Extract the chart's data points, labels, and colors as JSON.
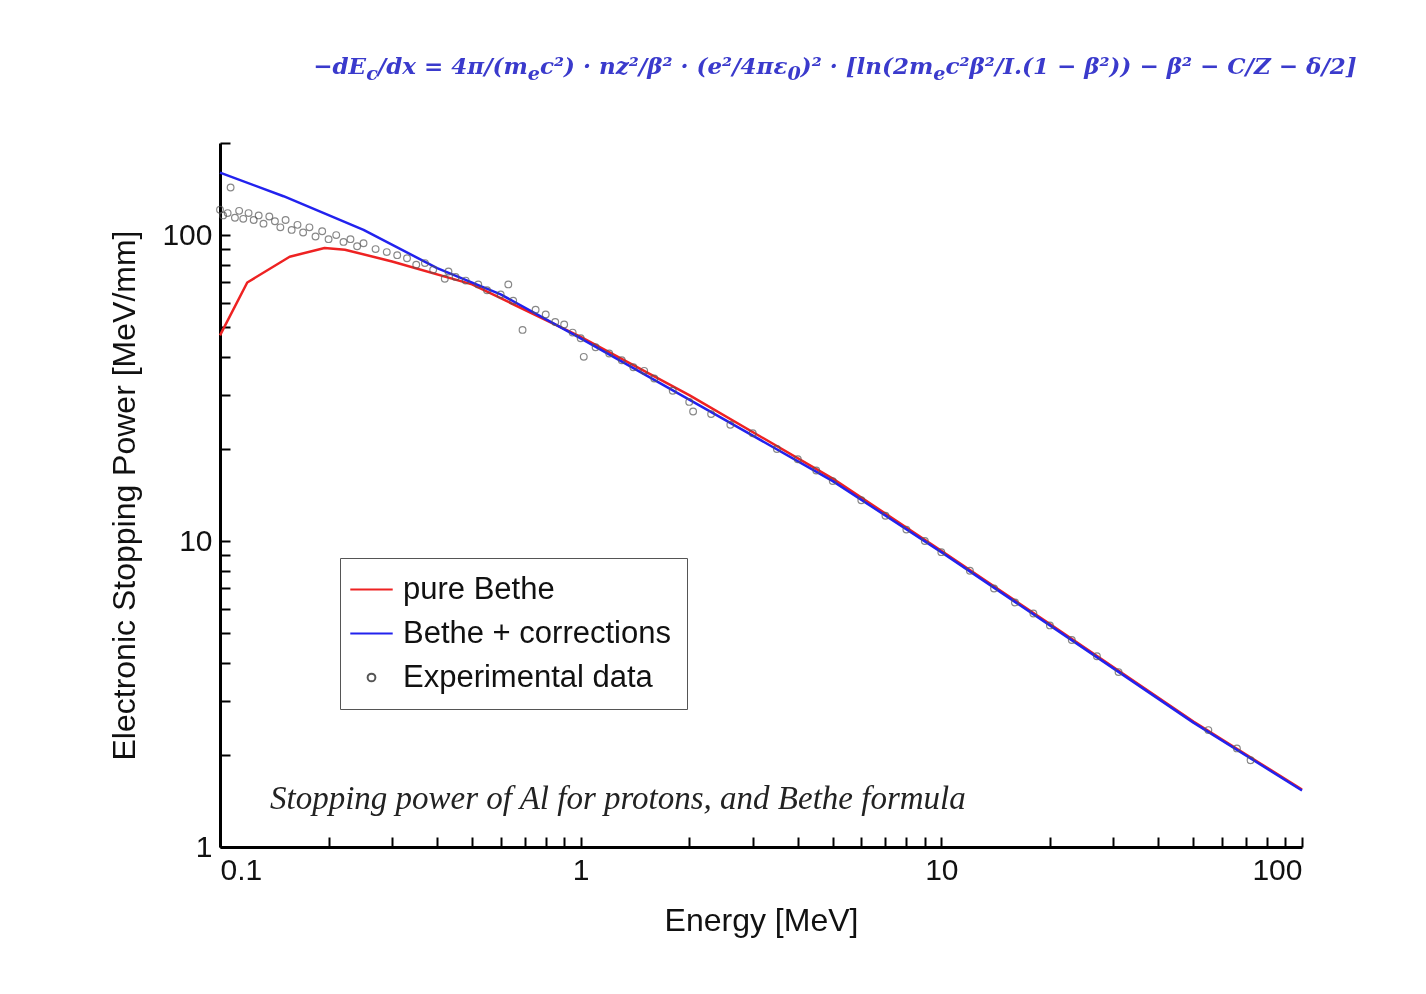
{
  "chart_data": {
    "type": "line",
    "xlabel": "Energy [MeV]",
    "ylabel": "Electronic Stopping Power [MeV/mm]",
    "annotations": [
      "−dE$_{c}$/dx = 4π/(m$_{e}$c²) · nz²/β² · (e²/4πε$_{0}$)² · [ln(2m$_{e}$c²β²/I.(1 − β²)) − β² − C/Z − δ/2]",
      "Stopping power of Al for protons, and Bethe formula"
    ],
    "log": "xy",
    "grid": false,
    "legend": "bottom left",
    "xlim": [
      0.1,
      100
    ],
    "ylim": [
      1,
      200
    ],
    "xticks": [
      0.1,
      {
        "value": 0.2,
        "label": null
      },
      {
        "value": 0.3,
        "label": null
      },
      {
        "value": 0.4,
        "label": null
      },
      {
        "value": 0.5,
        "label": null
      },
      {
        "value": 0.6,
        "label": null
      },
      {
        "value": 0.7,
        "label": null
      },
      {
        "value": 0.8,
        "label": null
      },
      {
        "value": 0.9,
        "label": null
      },
      1,
      {
        "value": 2,
        "label": null
      },
      {
        "value": 3,
        "label": null
      },
      {
        "value": 4,
        "label": null
      },
      {
        "value": 5,
        "label": null
      },
      {
        "value": 6,
        "label": null
      },
      {
        "value": 7,
        "label": null
      },
      {
        "value": 8,
        "label": null
      },
      {
        "value": 9,
        "label": null
      },
      10,
      {
        "value": 20,
        "label": null
      },
      {
        "value": 30,
        "label": null
      },
      {
        "value": 40,
        "label": null
      },
      {
        "value": 50,
        "label": null
      },
      {
        "value": 60,
        "label": null
      },
      {
        "value": 70,
        "label": null
      },
      {
        "value": 80,
        "label": null
      },
      {
        "value": 90,
        "label": null
      },
      100
    ],
    "yticks": [
      1,
      {
        "value": 2,
        "label": null
      },
      {
        "value": 3,
        "label": null
      },
      {
        "value": 4,
        "label": null
      },
      {
        "value": 5,
        "label": null
      },
      {
        "value": 6,
        "label": null
      },
      {
        "value": 7,
        "label": null
      },
      {
        "value": 8,
        "label": null
      },
      {
        "value": 9,
        "label": null
      },
      10,
      {
        "value": 20,
        "label": null
      },
      {
        "value": 30,
        "label": null
      },
      {
        "value": 40,
        "label": null
      },
      {
        "value": 50,
        "label": null
      },
      {
        "value": 60,
        "label": null
      },
      {
        "value": 70,
        "label": null
      },
      {
        "value": 80,
        "label": null
      },
      {
        "value": 90,
        "label": null
      },
      100,
      {
        "value": 200,
        "label": null
      }
    ],
    "series": [
      {
        "name": "pure Bethe",
        "color": "#ee2222",
        "line_style": "solid",
        "x": [
          0.1,
          0.119,
          0.156,
          0.195,
          0.222,
          0.3,
          0.5,
          1,
          2,
          5,
          10,
          20,
          50,
          100
        ],
        "values": [
          47,
          70,
          85,
          90.7,
          89.6,
          82,
          69,
          46.5,
          30,
          16,
          9.3,
          5.35,
          2.57,
          1.54
        ]
      },
      {
        "name": "Bethe + corrections",
        "color": "#2222ee",
        "line_style": "solid",
        "x": [
          0.1,
          0.15,
          0.25,
          0.4,
          0.6,
          1,
          2,
          5,
          10,
          20,
          50,
          100
        ],
        "values": [
          160,
          134,
          104,
          78,
          64,
          46,
          29,
          15.7,
          9.2,
          5.3,
          2.55,
          1.53
        ]
      },
      {
        "name": "Experimental data",
        "type": "scatter",
        "color": "#555555",
        "marker": "circle",
        "x": [
          0.1,
          0.102,
          0.105,
          0.107,
          0.11,
          0.113,
          0.116,
          0.12,
          0.124,
          0.128,
          0.132,
          0.137,
          0.142,
          0.147,
          0.152,
          0.158,
          0.164,
          0.17,
          0.177,
          0.184,
          0.192,
          0.2,
          0.21,
          0.22,
          0.23,
          0.24,
          0.25,
          0.27,
          0.29,
          0.31,
          0.33,
          0.35,
          0.37,
          0.39,
          0.42,
          0.43,
          0.45,
          0.48,
          0.52,
          0.55,
          0.6,
          0.63,
          0.65,
          0.69,
          0.75,
          0.8,
          0.85,
          0.9,
          0.95,
          1,
          1.02,
          1.1,
          1.2,
          1.3,
          1.4,
          1.5,
          1.6,
          1.8,
          2,
          2.05,
          2.3,
          2.6,
          3,
          3.5,
          4,
          4.5,
          5,
          6,
          7,
          8,
          9,
          10,
          12,
          14,
          16,
          18,
          20,
          23,
          27,
          31,
          55,
          66,
          72
        ],
        "values": [
          121,
          116,
          118,
          143,
          114,
          120,
          113,
          118,
          112,
          116,
          109,
          115,
          111,
          106,
          112,
          104,
          108,
          102,
          106,
          99,
          103,
          97,
          100,
          95,
          97,
          92,
          94,
          90,
          88,
          86,
          84,
          80,
          81,
          77,
          72,
          76,
          73,
          71,
          69,
          66,
          64,
          69,
          61,
          49,
          57,
          55,
          52,
          51,
          48,
          46,
          40,
          43,
          41,
          39,
          37,
          36,
          34,
          31,
          28.5,
          26.5,
          26,
          24,
          22.5,
          20,
          18.5,
          17,
          15.7,
          13.6,
          12.1,
          10.9,
          10,
          9.2,
          8,
          7,
          6.3,
          5.8,
          5.3,
          4.75,
          4.2,
          3.73,
          2.41,
          2.1,
          1.92
        ]
      }
    ]
  }
}
